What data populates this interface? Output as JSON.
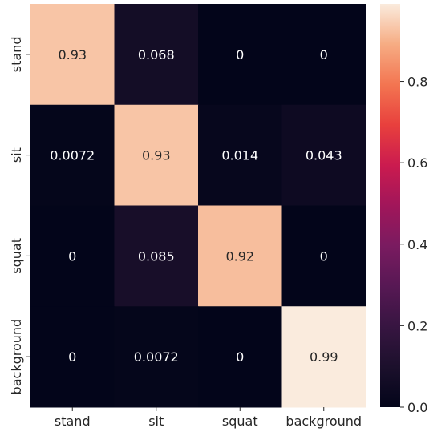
{
  "chart_data": {
    "type": "heatmap",
    "rows": [
      "stand",
      "sit",
      "squat",
      "background"
    ],
    "columns": [
      "stand",
      "sit",
      "squat",
      "background"
    ],
    "values": [
      [
        0.93,
        0.068,
        0,
        0
      ],
      [
        0.0072,
        0.93,
        0.014,
        0.043
      ],
      [
        0,
        0.085,
        0.92,
        0
      ],
      [
        0,
        0.0072,
        0,
        0.99
      ]
    ],
    "cell_labels": [
      [
        "0.93",
        "0.068",
        "0",
        "0"
      ],
      [
        "0.0072",
        "0.93",
        "0.014",
        "0.043"
      ],
      [
        "0",
        "0.085",
        "0.92",
        "0"
      ],
      [
        "0",
        "0.0072",
        "0",
        "0.99"
      ]
    ],
    "colorbar": {
      "range": [
        0,
        0.99
      ],
      "ticks": [
        0.0,
        0.2,
        0.4,
        0.6,
        0.8
      ],
      "tick_labels": [
        "0.0",
        "0.2",
        "0.4",
        "0.6",
        "0.8"
      ],
      "colormap": "rocket"
    },
    "title": "",
    "xlabel": "",
    "ylabel": "",
    "grid": false
  },
  "colors": {
    "low": "#03051a",
    "high": "#faebdd",
    "text_on_dark": "#ffffff",
    "text_on_light": "#262626"
  }
}
